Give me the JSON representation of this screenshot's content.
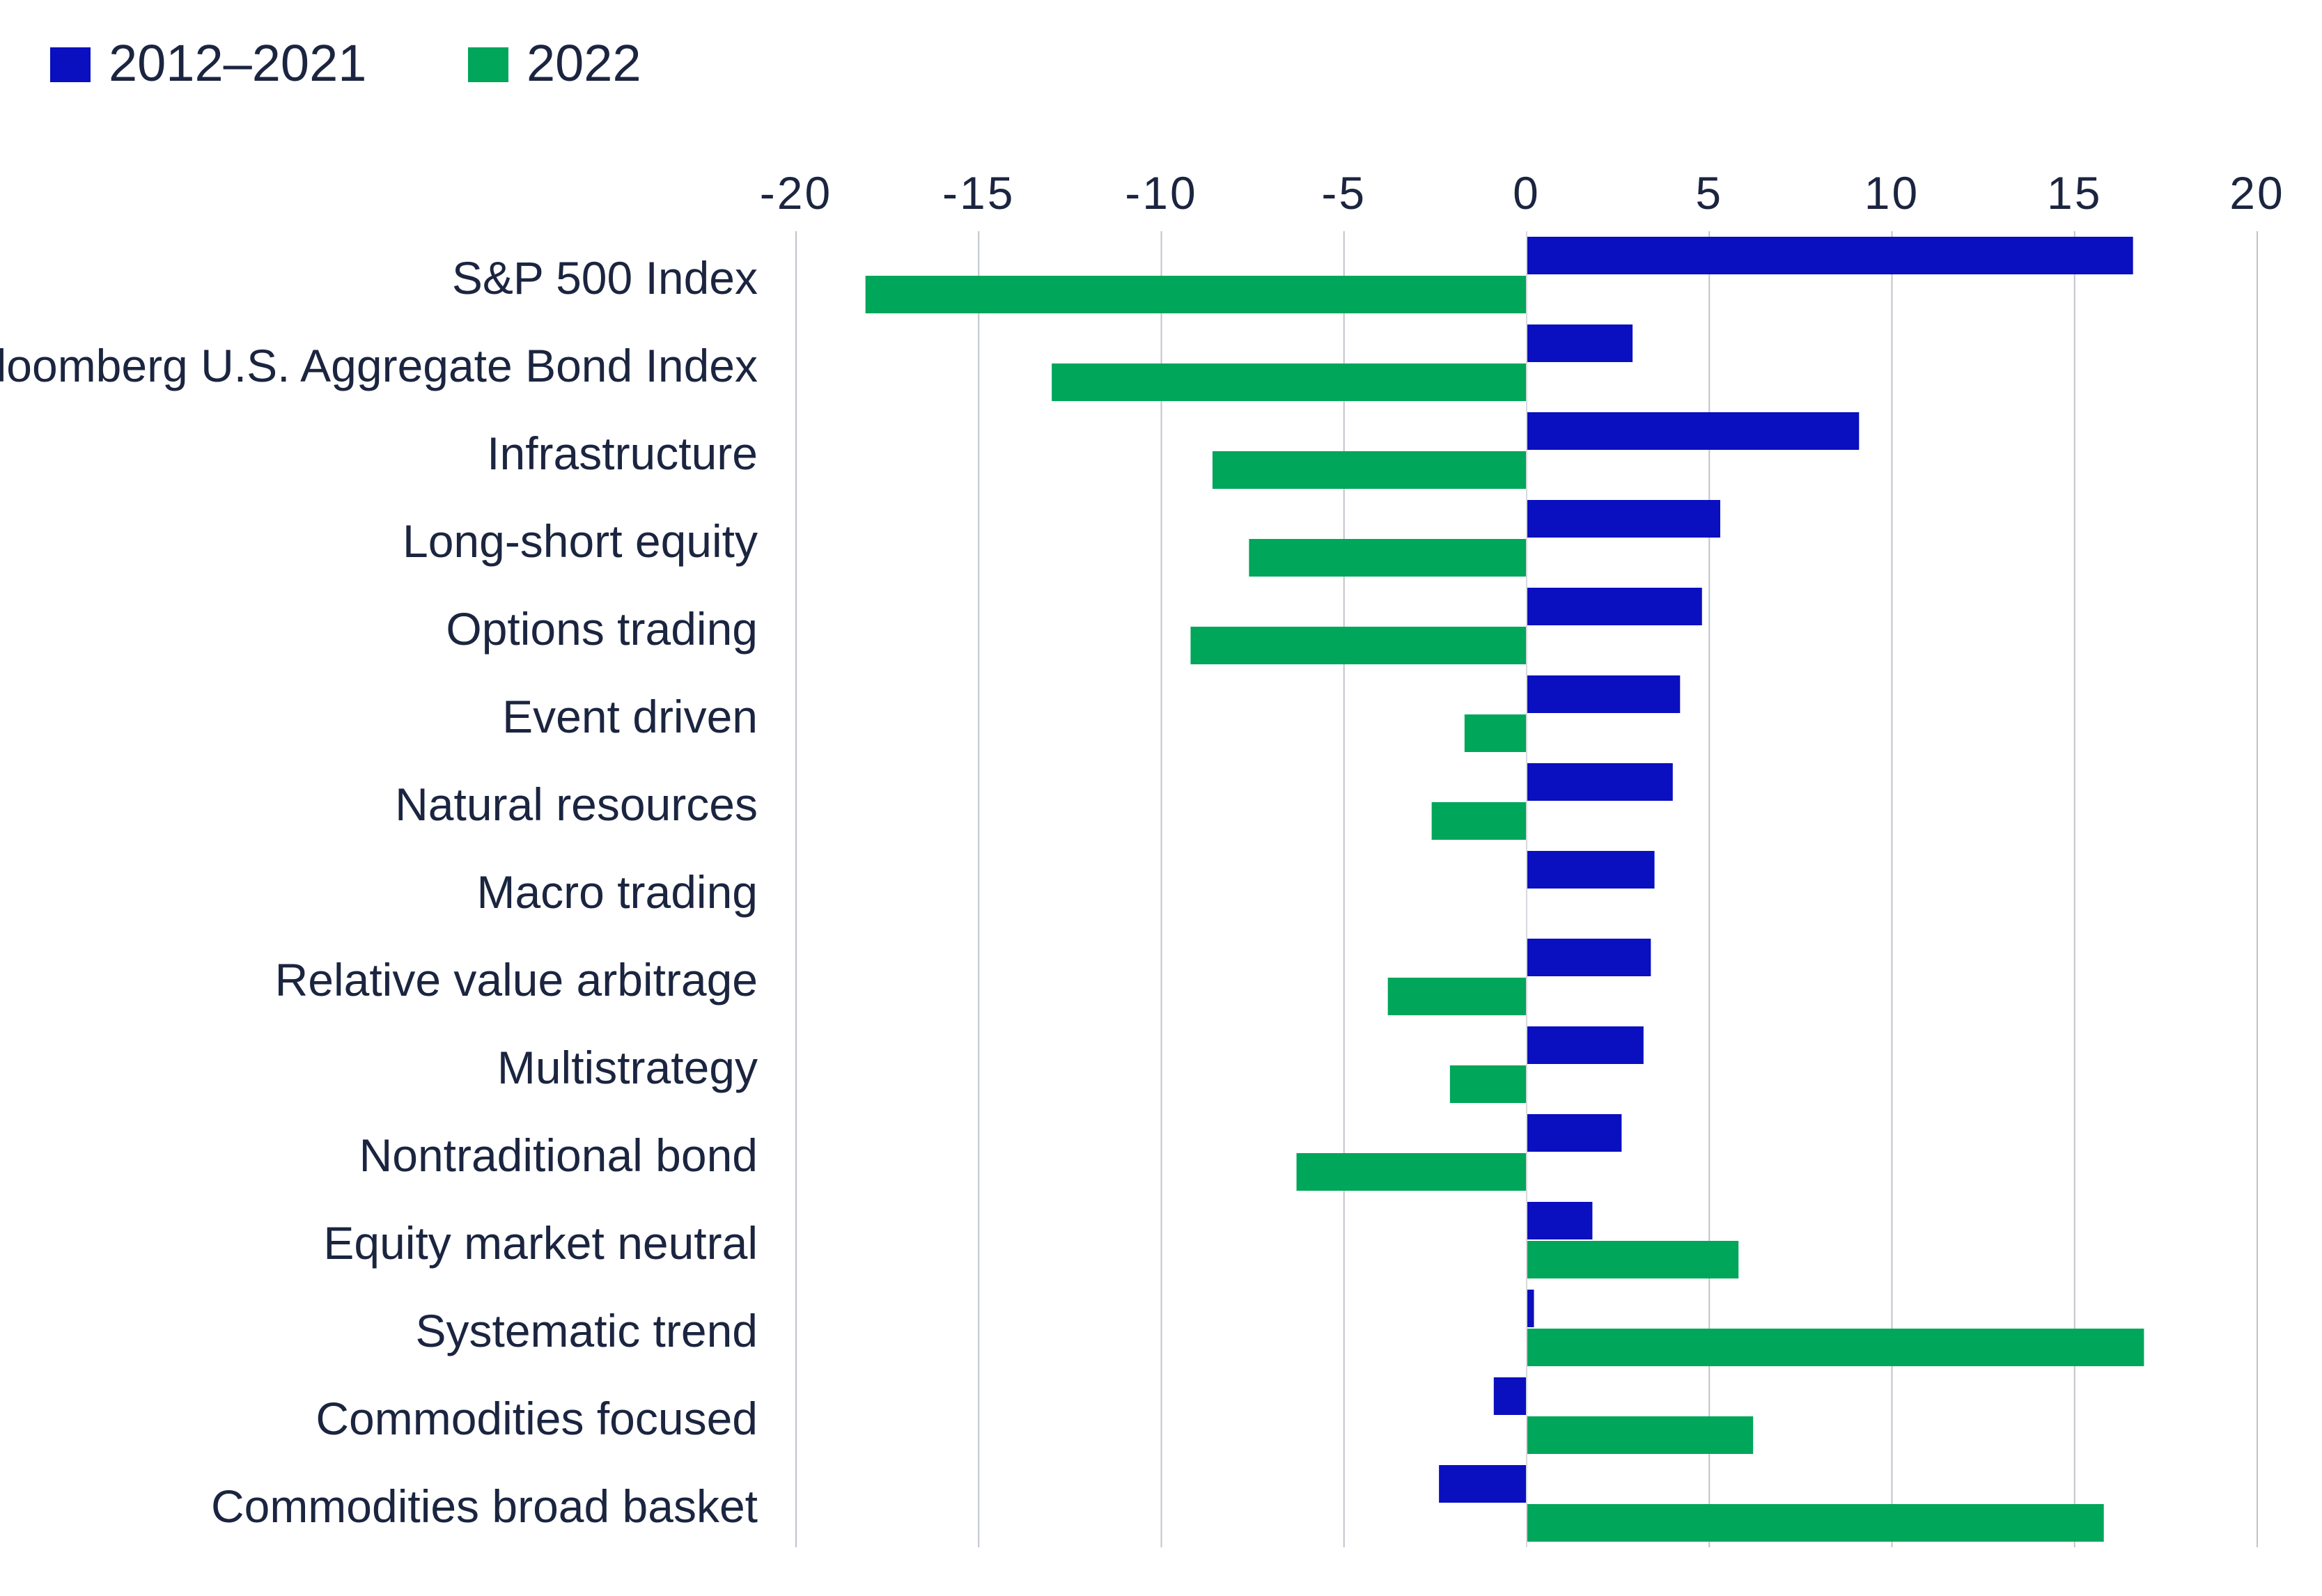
{
  "chart_data": {
    "type": "bar",
    "orientation": "horizontal",
    "categories": [
      "S&P 500 Index",
      "Bloomberg U.S. Aggregate Bond Index",
      "Infrastructure",
      "Long-short equity",
      "Options trading",
      "Event driven",
      "Natural resources",
      "Macro trading",
      "Relative value arbitrage",
      "Multistrategy",
      "Nontraditional bond",
      "Equity market neutral",
      "Systematic trend",
      "Commodities focused",
      "Commodities broad basket"
    ],
    "series": [
      {
        "name": "2012–2021",
        "color": "#0a0fbf",
        "values": [
          16.6,
          2.9,
          9.1,
          5.3,
          4.8,
          4.2,
          4.0,
          3.5,
          3.4,
          3.2,
          2.6,
          1.8,
          0.2,
          -0.9,
          -2.4
        ]
      },
      {
        "name": "2022",
        "color": "#00a65a",
        "values": [
          -18.1,
          -13.0,
          -8.6,
          -7.6,
          -9.2,
          -1.7,
          -2.6,
          null,
          -3.8,
          -2.1,
          -6.3,
          5.8,
          16.9,
          6.2,
          15.8
        ]
      }
    ],
    "xlim": [
      -20,
      20
    ],
    "x_ticks": [
      "-20",
      "-15",
      "-10",
      "-5",
      "0",
      "5",
      "10",
      "15",
      "20"
    ],
    "grid": true,
    "legend_position": "top-left",
    "title": "",
    "xlabel": "",
    "ylabel": ""
  }
}
